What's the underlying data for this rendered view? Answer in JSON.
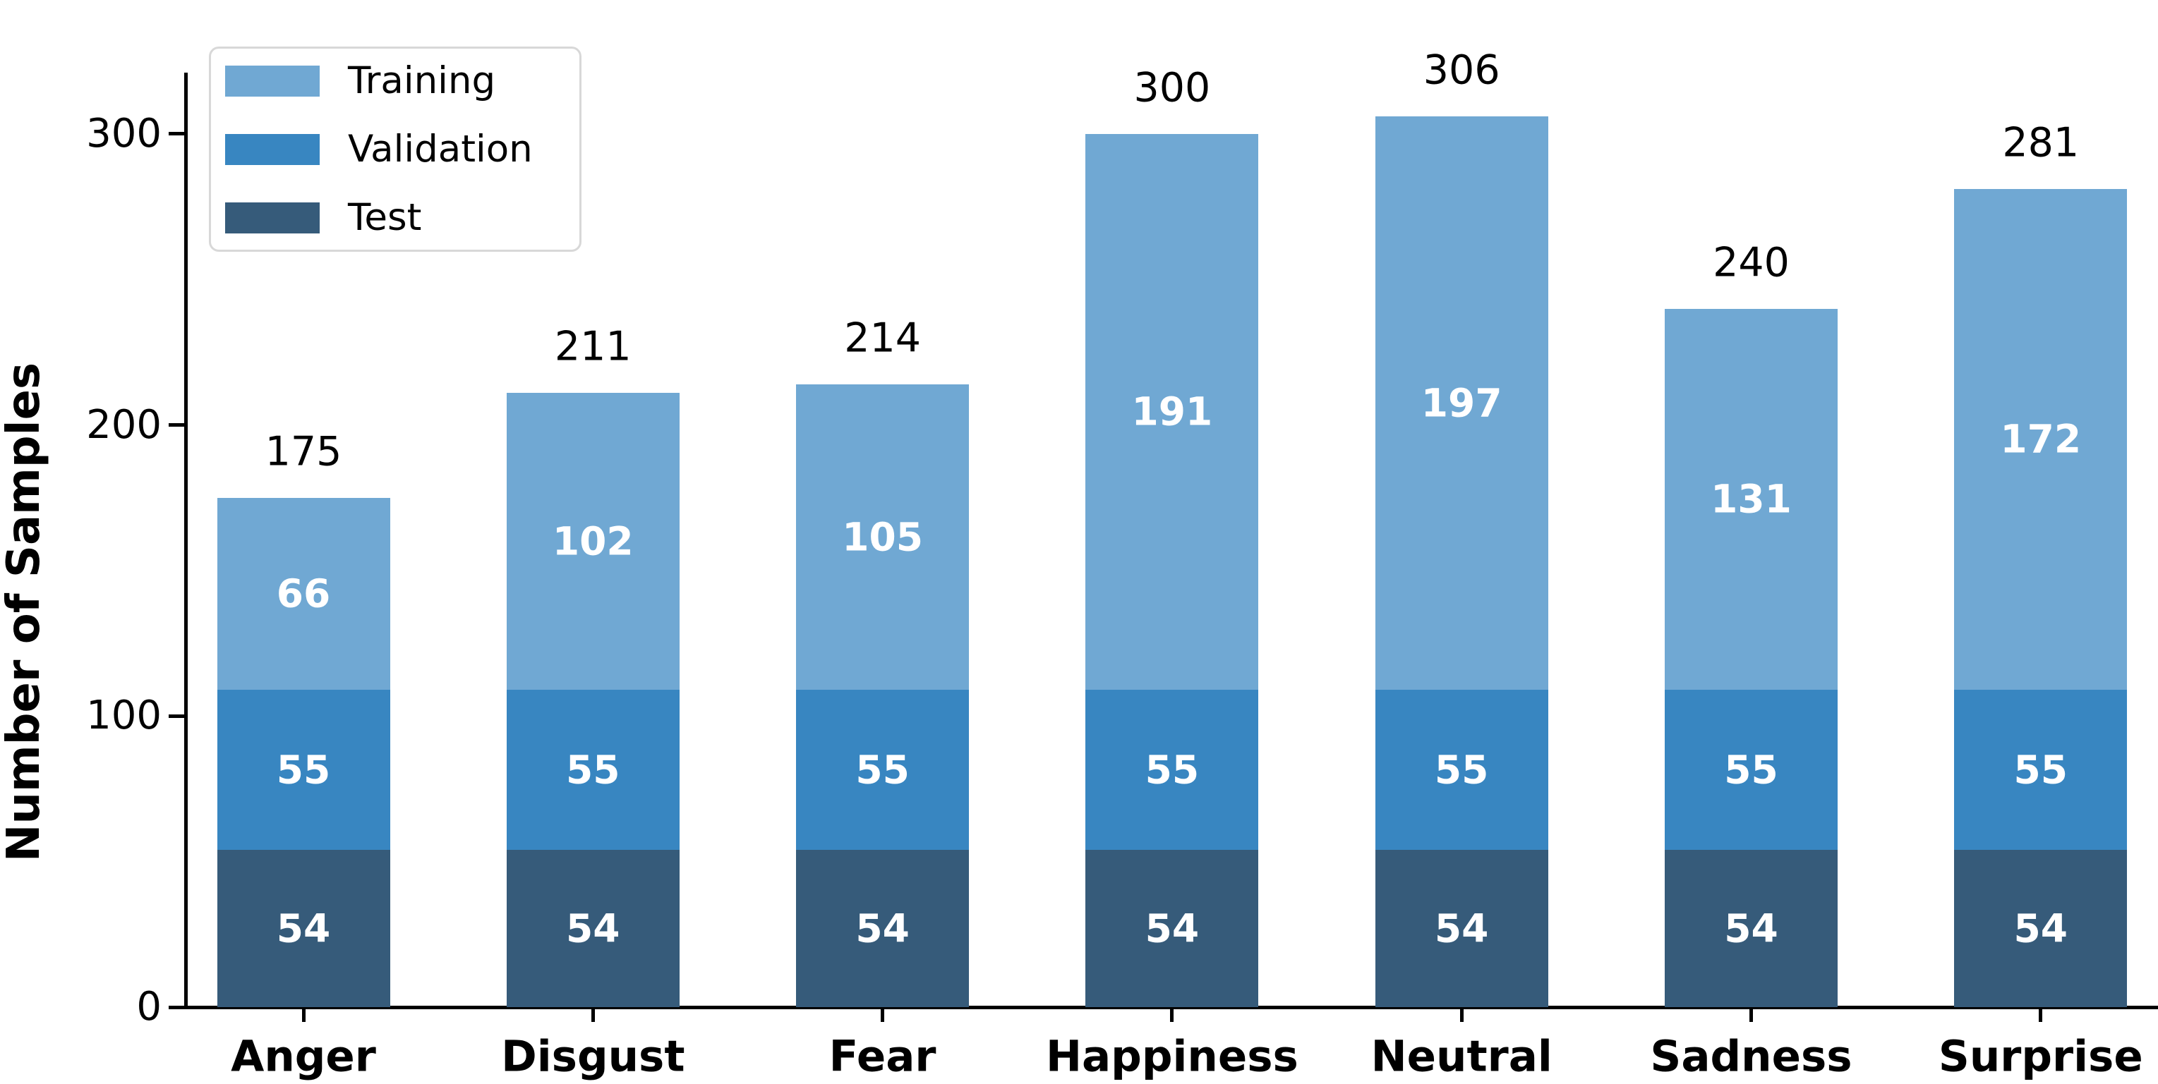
{
  "chart_data": {
    "type": "bar",
    "stacked": true,
    "title": "",
    "xlabel": "",
    "ylabel": "Number of Samples",
    "categories": [
      "Anger",
      "Disgust",
      "Fear",
      "Happiness",
      "Neutral",
      "Sadness",
      "Surprise"
    ],
    "series": [
      {
        "name": "Test",
        "color": "#365b7a",
        "values": [
          54,
          54,
          54,
          54,
          54,
          54,
          54
        ]
      },
      {
        "name": "Validation",
        "color": "#3886c1",
        "values": [
          55,
          55,
          55,
          55,
          55,
          55,
          55
        ]
      },
      {
        "name": "Training",
        "color": "#70a8d3",
        "values": [
          66,
          102,
          105,
          191,
          197,
          131,
          172
        ]
      }
    ],
    "totals": [
      175,
      211,
      214,
      300,
      306,
      240,
      281
    ],
    "yticks": [
      0,
      100,
      200,
      300
    ],
    "ylim": [
      0,
      321
    ],
    "grid": false,
    "value_label_color": "#ffffff",
    "axis_color": "#000000",
    "legend": {
      "position": "upper left",
      "entries": [
        "Training",
        "Validation",
        "Test"
      ],
      "frame_color": "#d8d8d8"
    }
  }
}
